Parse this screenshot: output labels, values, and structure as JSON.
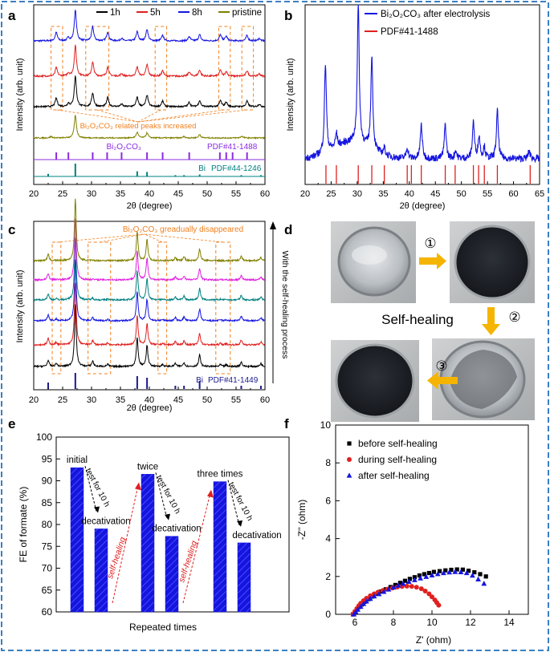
{
  "figure": {
    "border_color": "#3b7fc4"
  },
  "chart_data": [
    {
      "panel": "a",
      "type": "line",
      "xlabel": "2θ (degree)",
      "ylabel": "Intensity (arb. unit)",
      "xlim": [
        20,
        60
      ],
      "xticks": [
        20,
        25,
        30,
        35,
        40,
        45,
        50,
        55,
        60
      ],
      "legend": [
        {
          "name": "1h",
          "color": "#000000"
        },
        {
          "name": "5h",
          "color": "#e02020"
        },
        {
          "name": "8h",
          "color": "#1515e0"
        },
        {
          "name": "pristine",
          "color": "#808000"
        }
      ],
      "peaks_pristine": [
        [
          27.2,
          1.0
        ],
        [
          37.9,
          0.25
        ],
        [
          39.6,
          0.22
        ],
        [
          48.7,
          0.15
        ],
        [
          23.0,
          0.06
        ],
        [
          46.0,
          0.06
        ],
        [
          56.0,
          0.08
        ]
      ],
      "peaks_bi2o2co3": [
        [
          23.9,
          0.28
        ],
        [
          26.0,
          0.1
        ],
        [
          27.2,
          1.0
        ],
        [
          30.2,
          0.45
        ],
        [
          32.8,
          0.3
        ],
        [
          35.2,
          0.08
        ],
        [
          37.9,
          0.3
        ],
        [
          39.6,
          0.38
        ],
        [
          42.3,
          0.18
        ],
        [
          46.9,
          0.14
        ],
        [
          48.7,
          0.2
        ],
        [
          52.3,
          0.2
        ],
        [
          53.3,
          0.15
        ],
        [
          56.9,
          0.18
        ],
        [
          59.0,
          0.08
        ]
      ],
      "ref_bi2o2co3": [
        23.9,
        26.0,
        30.2,
        32.7,
        35.2,
        39.6,
        42.3,
        46.9,
        52.2,
        53.3,
        54.4,
        56.9
      ],
      "ref_bi": [
        22.5,
        27.2,
        37.9,
        39.6,
        44.5,
        46.0,
        48.7,
        55.9,
        59.3
      ],
      "ref_bi_heights": [
        0.2,
        1.0,
        0.4,
        0.35,
        0.1,
        0.1,
        0.15,
        0.1,
        0.1
      ],
      "ref1_label": "PDF#41-1488",
      "ref2_prefix": "Bi",
      "ref2_label": "PDF#44-1246",
      "annotation": "Bi₂O₂CO₃ related peaks increased",
      "bi2o2co3_label": "Bi₂O₂CO₃",
      "box_ranges": [
        [
          23,
          25
        ],
        [
          29,
          33
        ],
        [
          41,
          43
        ],
        [
          52,
          54
        ],
        [
          56,
          58
        ]
      ]
    },
    {
      "panel": "b",
      "type": "line",
      "xlabel": "2θ (degree)",
      "ylabel": "Intensity (arb. unit)",
      "xlim": [
        20,
        65
      ],
      "xticks": [
        20,
        25,
        30,
        35,
        40,
        45,
        50,
        55,
        60,
        65
      ],
      "legend": [
        {
          "name": "Bi₂O₂CO₃ after electrolysis",
          "color": "#1515e0"
        },
        {
          "name": "PDF#41-1488",
          "color": "#e02020"
        }
      ],
      "peaks": [
        [
          23.9,
          0.65
        ],
        [
          26.0,
          0.1
        ],
        [
          30.2,
          1.0
        ],
        [
          32.8,
          0.68
        ],
        [
          35.2,
          0.05
        ],
        [
          39.6,
          0.08
        ],
        [
          42.3,
          0.25
        ],
        [
          46.9,
          0.25
        ],
        [
          48.9,
          0.06
        ],
        [
          52.3,
          0.27
        ],
        [
          53.4,
          0.16
        ],
        [
          54.4,
          0.08
        ],
        [
          56.9,
          0.35
        ],
        [
          63.0,
          0.06
        ]
      ],
      "ref_positions": [
        24.0,
        26.0,
        30.2,
        32.8,
        35.2,
        39.6,
        40.4,
        42.3,
        46.9,
        48.8,
        52.3,
        53.3,
        54.4,
        56.9,
        63.2
      ]
    },
    {
      "panel": "c",
      "type": "line",
      "xlabel": "2θ (degree)",
      "ylabel": "Intensity (arb. unit)",
      "xlim": [
        20,
        60
      ],
      "xticks": [
        20,
        25,
        30,
        35,
        40,
        45,
        50,
        55,
        60
      ],
      "series_colors": [
        "#000000",
        "#e02020",
        "#1515e0",
        "#008080",
        "#e020e0",
        "#808000"
      ],
      "ref_prefix": "Bi",
      "ref_label": "PDF#41-1449",
      "ref_positions": [
        22.5,
        27.2,
        37.9,
        39.6,
        44.5,
        46.0,
        48.7,
        55.9,
        59.3
      ],
      "annotation": "Bi₂O₂CO₃ greadually disappeared",
      "arrow_label": "With the self-healing process"
    },
    {
      "panel": "e",
      "type": "bar",
      "xlabel": "Repeated times",
      "ylabel": "FE of formate (%)",
      "ylim": [
        60,
        100
      ],
      "yticks": [
        60,
        65,
        70,
        75,
        80,
        85,
        90,
        95,
        100
      ],
      "values": [
        93.0,
        79.0,
        91.5,
        77.3,
        89.8,
        75.8
      ],
      "bar_color": "#1515e0",
      "labels": [
        "initial",
        "decativation",
        "twice",
        "decativation",
        "three times",
        "decativation"
      ],
      "test_label": "test for 10 h",
      "heal_label": "self-healing"
    },
    {
      "panel": "f",
      "type": "scatter",
      "xlabel": "Z' (ohm)",
      "ylabel": "-Z'' (ohm)",
      "xlim": [
        5,
        15
      ],
      "ylim": [
        0,
        10
      ],
      "xticks": [
        6,
        8,
        10,
        12,
        14
      ],
      "yticks": [
        0,
        2,
        4,
        6,
        8,
        10
      ],
      "series": [
        {
          "name": "before self-healing",
          "marker": "square",
          "color": "#000000",
          "x": [
            5.9,
            6.0,
            6.1,
            6.2,
            6.35,
            6.5,
            6.7,
            6.9,
            7.1,
            7.35,
            7.6,
            7.85,
            8.1,
            8.35,
            8.6,
            8.85,
            9.1,
            9.35,
            9.6,
            9.85,
            10.1,
            10.4,
            10.7,
            11.0,
            11.3,
            11.6,
            11.9,
            12.2,
            12.5,
            12.8
          ],
          "y": [
            0.0,
            0.12,
            0.25,
            0.38,
            0.52,
            0.66,
            0.8,
            0.94,
            1.08,
            1.2,
            1.32,
            1.44,
            1.55,
            1.66,
            1.77,
            1.87,
            1.96,
            2.05,
            2.12,
            2.18,
            2.24,
            2.28,
            2.32,
            2.35,
            2.37,
            2.36,
            2.3,
            2.22,
            2.12,
            2.0
          ]
        },
        {
          "name": "during self-healing",
          "marker": "circle",
          "color": "#e02020",
          "x": [
            5.9,
            6.0,
            6.1,
            6.2,
            6.3,
            6.45,
            6.6,
            6.8,
            7.0,
            7.2,
            7.45,
            7.7,
            7.95,
            8.2,
            8.45,
            8.7,
            8.95,
            9.2,
            9.45,
            9.65,
            9.85,
            10.0,
            10.15,
            10.25,
            10.35
          ],
          "y": [
            0.0,
            0.15,
            0.3,
            0.45,
            0.58,
            0.72,
            0.85,
            0.98,
            1.08,
            1.17,
            1.26,
            1.33,
            1.39,
            1.44,
            1.47,
            1.49,
            1.48,
            1.43,
            1.35,
            1.23,
            1.08,
            0.92,
            0.76,
            0.62,
            0.48
          ]
        },
        {
          "name": "after self-healing",
          "marker": "triangle",
          "color": "#1515e0",
          "x": [
            5.95,
            6.05,
            6.15,
            6.3,
            6.45,
            6.6,
            6.8,
            7.0,
            7.25,
            7.5,
            7.75,
            8.0,
            8.25,
            8.5,
            8.8,
            9.1,
            9.4,
            9.7,
            10.0,
            10.3,
            10.6,
            10.9,
            11.2,
            11.5,
            11.8,
            12.1,
            12.4,
            12.7
          ],
          "y": [
            0.0,
            0.12,
            0.25,
            0.4,
            0.55,
            0.68,
            0.82,
            0.95,
            1.07,
            1.19,
            1.31,
            1.42,
            1.52,
            1.62,
            1.72,
            1.81,
            1.9,
            1.98,
            2.06,
            2.13,
            2.18,
            2.22,
            2.24,
            2.23,
            2.18,
            2.05,
            1.85,
            1.62
          ]
        }
      ]
    }
  ],
  "photo_panel": {
    "step_labels": [
      "①",
      "②",
      "③"
    ],
    "center_label": "Self-healing",
    "arrow_color": "#f5b400"
  },
  "panel_letters": [
    "a",
    "b",
    "c",
    "d",
    "e",
    "f"
  ]
}
